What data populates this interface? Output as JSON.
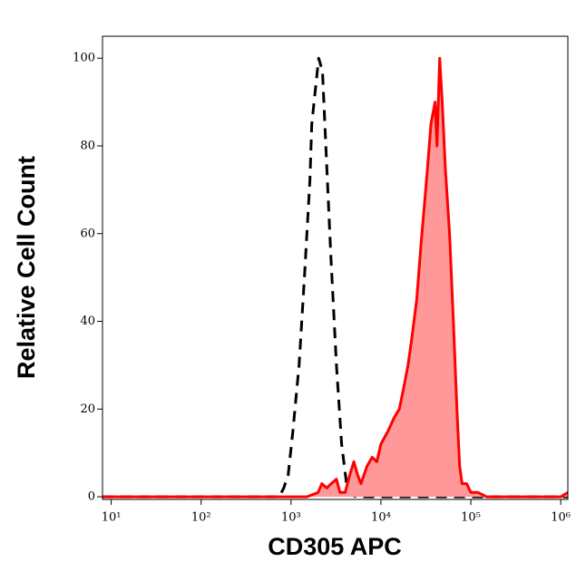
{
  "chart_data": {
    "type": "histogram_line",
    "x_label": "CD305 APC",
    "y_label": "Relative Cell Count",
    "xscale": "log",
    "xlim": [
      8,
      1200000
    ],
    "ylim": [
      -0.6,
      105
    ],
    "xticks": [
      {
        "value": 10,
        "label": "10¹"
      },
      {
        "value": 100,
        "label": "10²"
      },
      {
        "value": 1000,
        "label": "10³"
      },
      {
        "value": 10000,
        "label": "10⁴"
      },
      {
        "value": 100000,
        "label": "10⁵"
      },
      {
        "value": 1000000,
        "label": "10⁶"
      }
    ],
    "yticks": [
      0,
      20,
      40,
      60,
      80,
      100
    ],
    "series": [
      {
        "color": "#000000",
        "dashed": true,
        "filled": false,
        "x": [
          8,
          740,
          830,
          930,
          1050,
          1230,
          1410,
          1620,
          1700,
          2030,
          2240,
          2440,
          2770,
          3200,
          3650,
          4140,
          4700,
          5300,
          1200000
        ],
        "values": [
          0,
          0,
          2,
          5,
          15,
          30,
          50,
          72,
          85,
          100,
          97,
          80,
          55,
          30,
          12,
          3,
          0.5,
          0,
          0
        ]
      },
      {
        "color": "#ff0000",
        "fill": "#ff9999",
        "dashed": false,
        "filled": true,
        "x": [
          8,
          1000,
          1500,
          2000,
          2200,
          2500,
          2800,
          3200,
          3500,
          4000,
          4500,
          5000,
          5500,
          6000,
          7000,
          8000,
          9000,
          10000,
          12000,
          14000,
          16000,
          18000,
          20000,
          22000,
          25000,
          28000,
          30000,
          33000,
          36000,
          40000,
          42000,
          45000,
          48000,
          52000,
          58000,
          64000,
          70000,
          75000,
          80000,
          90000,
          100000,
          120000,
          150000,
          1000000,
          1200000
        ],
        "values": [
          0,
          0,
          0,
          1,
          3,
          2,
          3,
          4,
          1,
          1,
          5,
          8,
          5,
          3,
          7,
          9,
          8,
          12,
          15,
          18,
          20,
          25,
          30,
          36,
          45,
          58,
          65,
          75,
          85,
          90,
          80,
          100,
          90,
          75,
          60,
          40,
          20,
          7,
          3,
          3,
          1,
          1,
          0,
          0,
          1
        ]
      }
    ]
  }
}
